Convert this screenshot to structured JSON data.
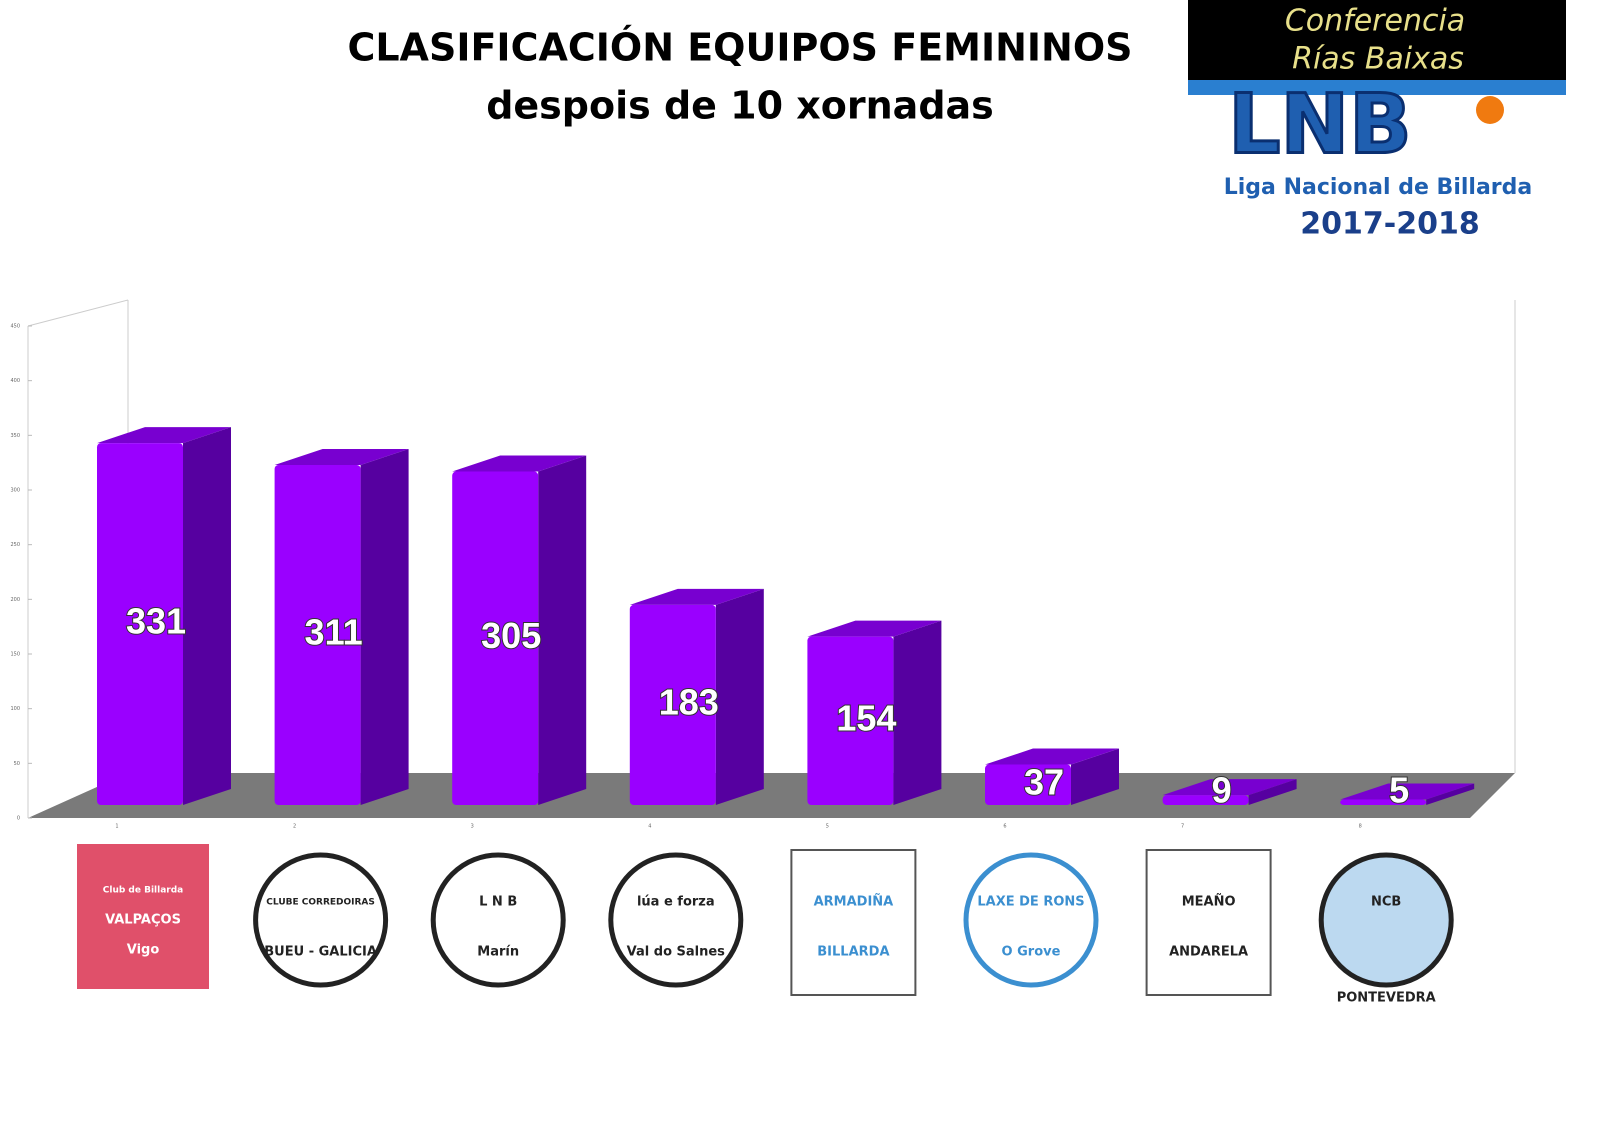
{
  "header": {
    "title": "CLASIFICACIÓN EQUIPOS FEMININOS",
    "subtitle": "despois de 10 xornadas"
  },
  "logo": {
    "conference": [
      "Conferencia",
      "Rías Baixas"
    ],
    "brand": "LNB",
    "league": "Liga Nacional de Billarda",
    "season": "2017-2018"
  },
  "chart_data": {
    "type": "bar",
    "categories": [
      "1",
      "2",
      "3",
      "4",
      "5",
      "6",
      "7",
      "8"
    ],
    "values": [
      331,
      311,
      305,
      183,
      154,
      37,
      9,
      5
    ],
    "color": "#9a00ff",
    "ylim": [
      0,
      450
    ],
    "yticks": [
      0,
      50,
      100,
      150,
      200,
      250,
      300,
      350,
      400,
      450
    ]
  },
  "teams": [
    [
      "Club de Billarda",
      "VALPAÇOS",
      "Vigo"
    ],
    [
      "CLUBE CORREDOIRAS",
      "BUEU - GALICIA"
    ],
    [
      "L N B",
      "Marín"
    ],
    [
      "lúa e forza",
      "Val do Salnes"
    ],
    [
      "ARMADIÑA",
      "BILLARDA"
    ],
    [
      "LAXE DE RONS",
      "O Grove"
    ],
    [
      "MEAÑO",
      "ANDARELA"
    ],
    [
      "NCB",
      "PONTEVEDRA"
    ]
  ]
}
